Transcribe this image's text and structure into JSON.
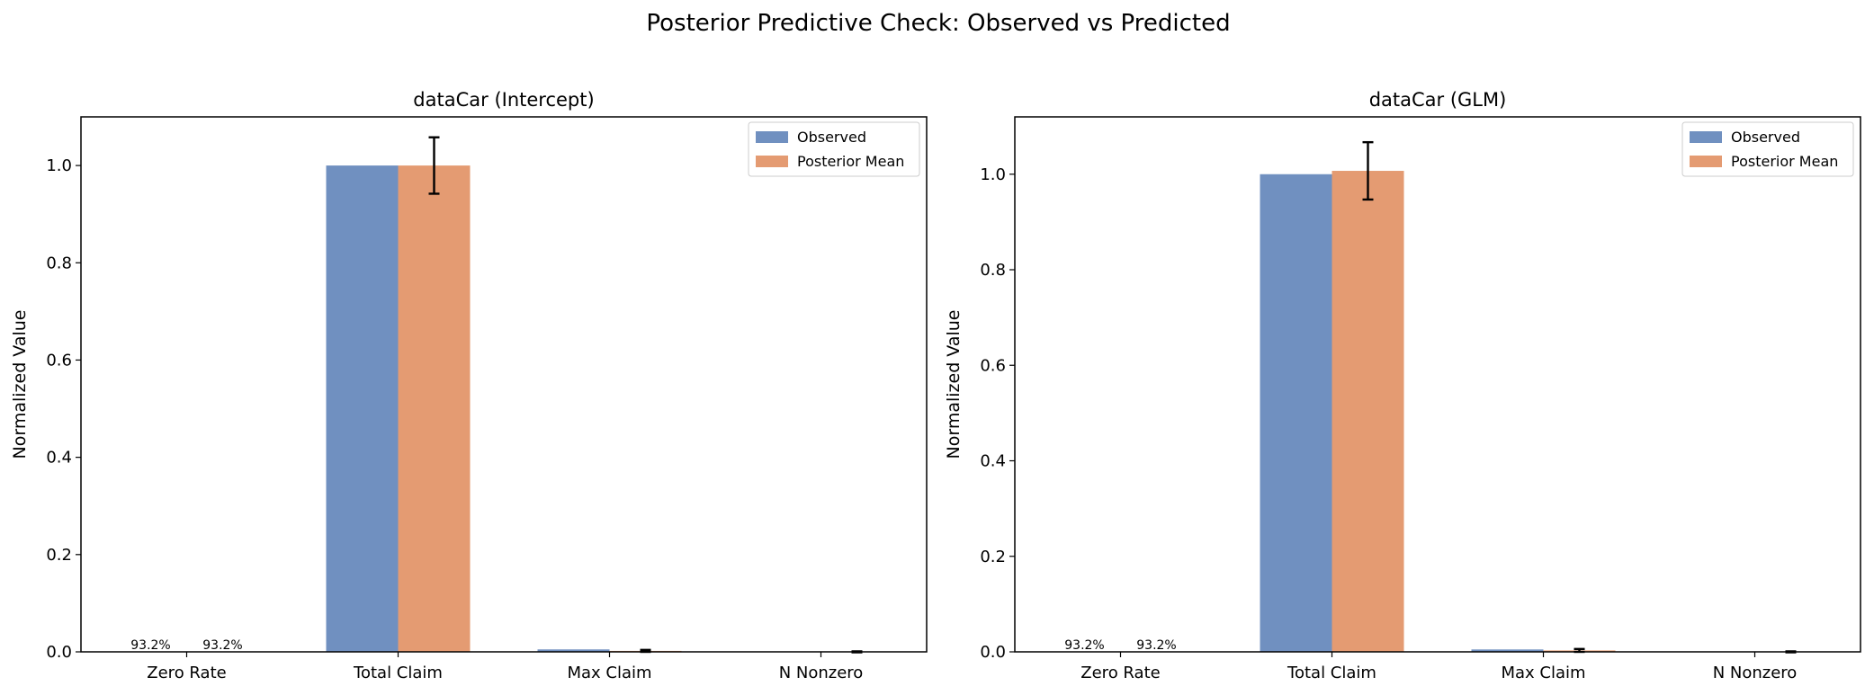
{
  "figure": {
    "suptitle": "Posterior Predictive Check: Observed vs Predicted"
  },
  "colors": {
    "observed": "#7090c0",
    "posterior_mean": "#e49b72",
    "axis": "#000000",
    "background": "#ffffff"
  },
  "chart_data": [
    {
      "type": "bar",
      "title": "dataCar (Intercept)",
      "xlabel": "",
      "ylabel": "Normalized Value",
      "categories": [
        "Zero Rate",
        "Total Claim",
        "Max Claim",
        "N Nonzero"
      ],
      "ylim": [
        0,
        1.1
      ],
      "yticks": [
        0.0,
        0.2,
        0.4,
        0.6,
        0.8,
        1.0
      ],
      "ytick_labels": [
        "0.0",
        "0.2",
        "0.4",
        "0.6",
        "0.8",
        "1.0"
      ],
      "legend_position": "top-right",
      "grid": false,
      "series": [
        {
          "name": "Observed",
          "values": [
            0,
            1.0,
            0.005,
            0
          ],
          "bar_labels": [
            "93.2%",
            "",
            "",
            ""
          ]
        },
        {
          "name": "Posterior Mean",
          "values": [
            0,
            1.0,
            0.002,
            0
          ],
          "error": [
            null,
            0.058,
            0.002,
            0.001
          ],
          "bar_labels": [
            "93.2%",
            "",
            "",
            ""
          ]
        }
      ]
    },
    {
      "type": "bar",
      "title": "dataCar (GLM)",
      "xlabel": "",
      "ylabel": "Normalized Value",
      "categories": [
        "Zero Rate",
        "Total Claim",
        "Max Claim",
        "N Nonzero"
      ],
      "ylim": [
        0,
        1.12
      ],
      "yticks": [
        0.0,
        0.2,
        0.4,
        0.6,
        0.8,
        1.0
      ],
      "ytick_labels": [
        "0.0",
        "0.2",
        "0.4",
        "0.6",
        "0.8",
        "1.0"
      ],
      "legend_position": "top-right",
      "grid": false,
      "series": [
        {
          "name": "Observed",
          "values": [
            0,
            1.0,
            0.005,
            0
          ],
          "bar_labels": [
            "93.2%",
            "",
            "",
            ""
          ]
        },
        {
          "name": "Posterior Mean",
          "values": [
            0,
            1.007,
            0.003,
            0
          ],
          "error": [
            null,
            0.06,
            0.003,
            0.001
          ],
          "bar_labels": [
            "93.2%",
            "",
            "",
            ""
          ]
        }
      ]
    }
  ]
}
